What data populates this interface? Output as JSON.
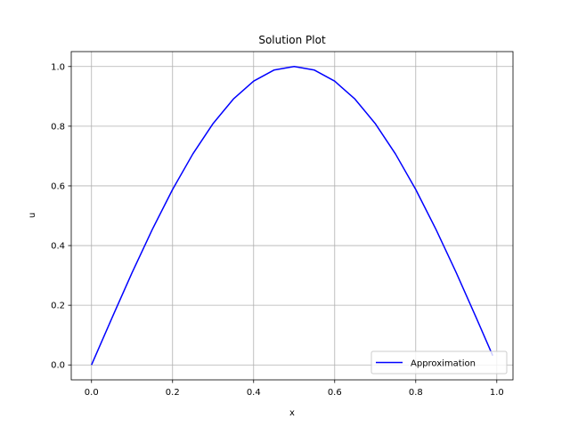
{
  "chart_data": {
    "type": "line",
    "title": "Solution Plot",
    "xlabel": "x",
    "ylabel": "u",
    "xlim": [
      -0.05,
      1.04
    ],
    "ylim": [
      -0.05,
      1.05
    ],
    "xticks": [
      0.0,
      0.2,
      0.4,
      0.6,
      0.8,
      1.0
    ],
    "xtick_labels": [
      "0.0",
      "0.2",
      "0.4",
      "0.6",
      "0.8",
      "1.0"
    ],
    "yticks": [
      0.0,
      0.2,
      0.4,
      0.6,
      0.8,
      1.0
    ],
    "ytick_labels": [
      "0.0",
      "0.2",
      "0.4",
      "0.6",
      "0.8",
      "1.0"
    ],
    "grid": true,
    "legend_position": "lower right",
    "series": [
      {
        "name": "Approximation",
        "color": "#0000ff",
        "x": [
          0.0,
          0.05,
          0.1,
          0.15,
          0.2,
          0.25,
          0.3,
          0.35,
          0.4,
          0.45,
          0.5,
          0.55,
          0.6,
          0.65,
          0.7,
          0.75,
          0.8,
          0.85,
          0.9,
          0.95,
          0.99
        ],
        "y": [
          0.0,
          0.156,
          0.309,
          0.454,
          0.588,
          0.707,
          0.809,
          0.891,
          0.951,
          0.988,
          1.0,
          0.988,
          0.951,
          0.891,
          0.809,
          0.707,
          0.588,
          0.454,
          0.309,
          0.156,
          0.031
        ]
      }
    ]
  }
}
